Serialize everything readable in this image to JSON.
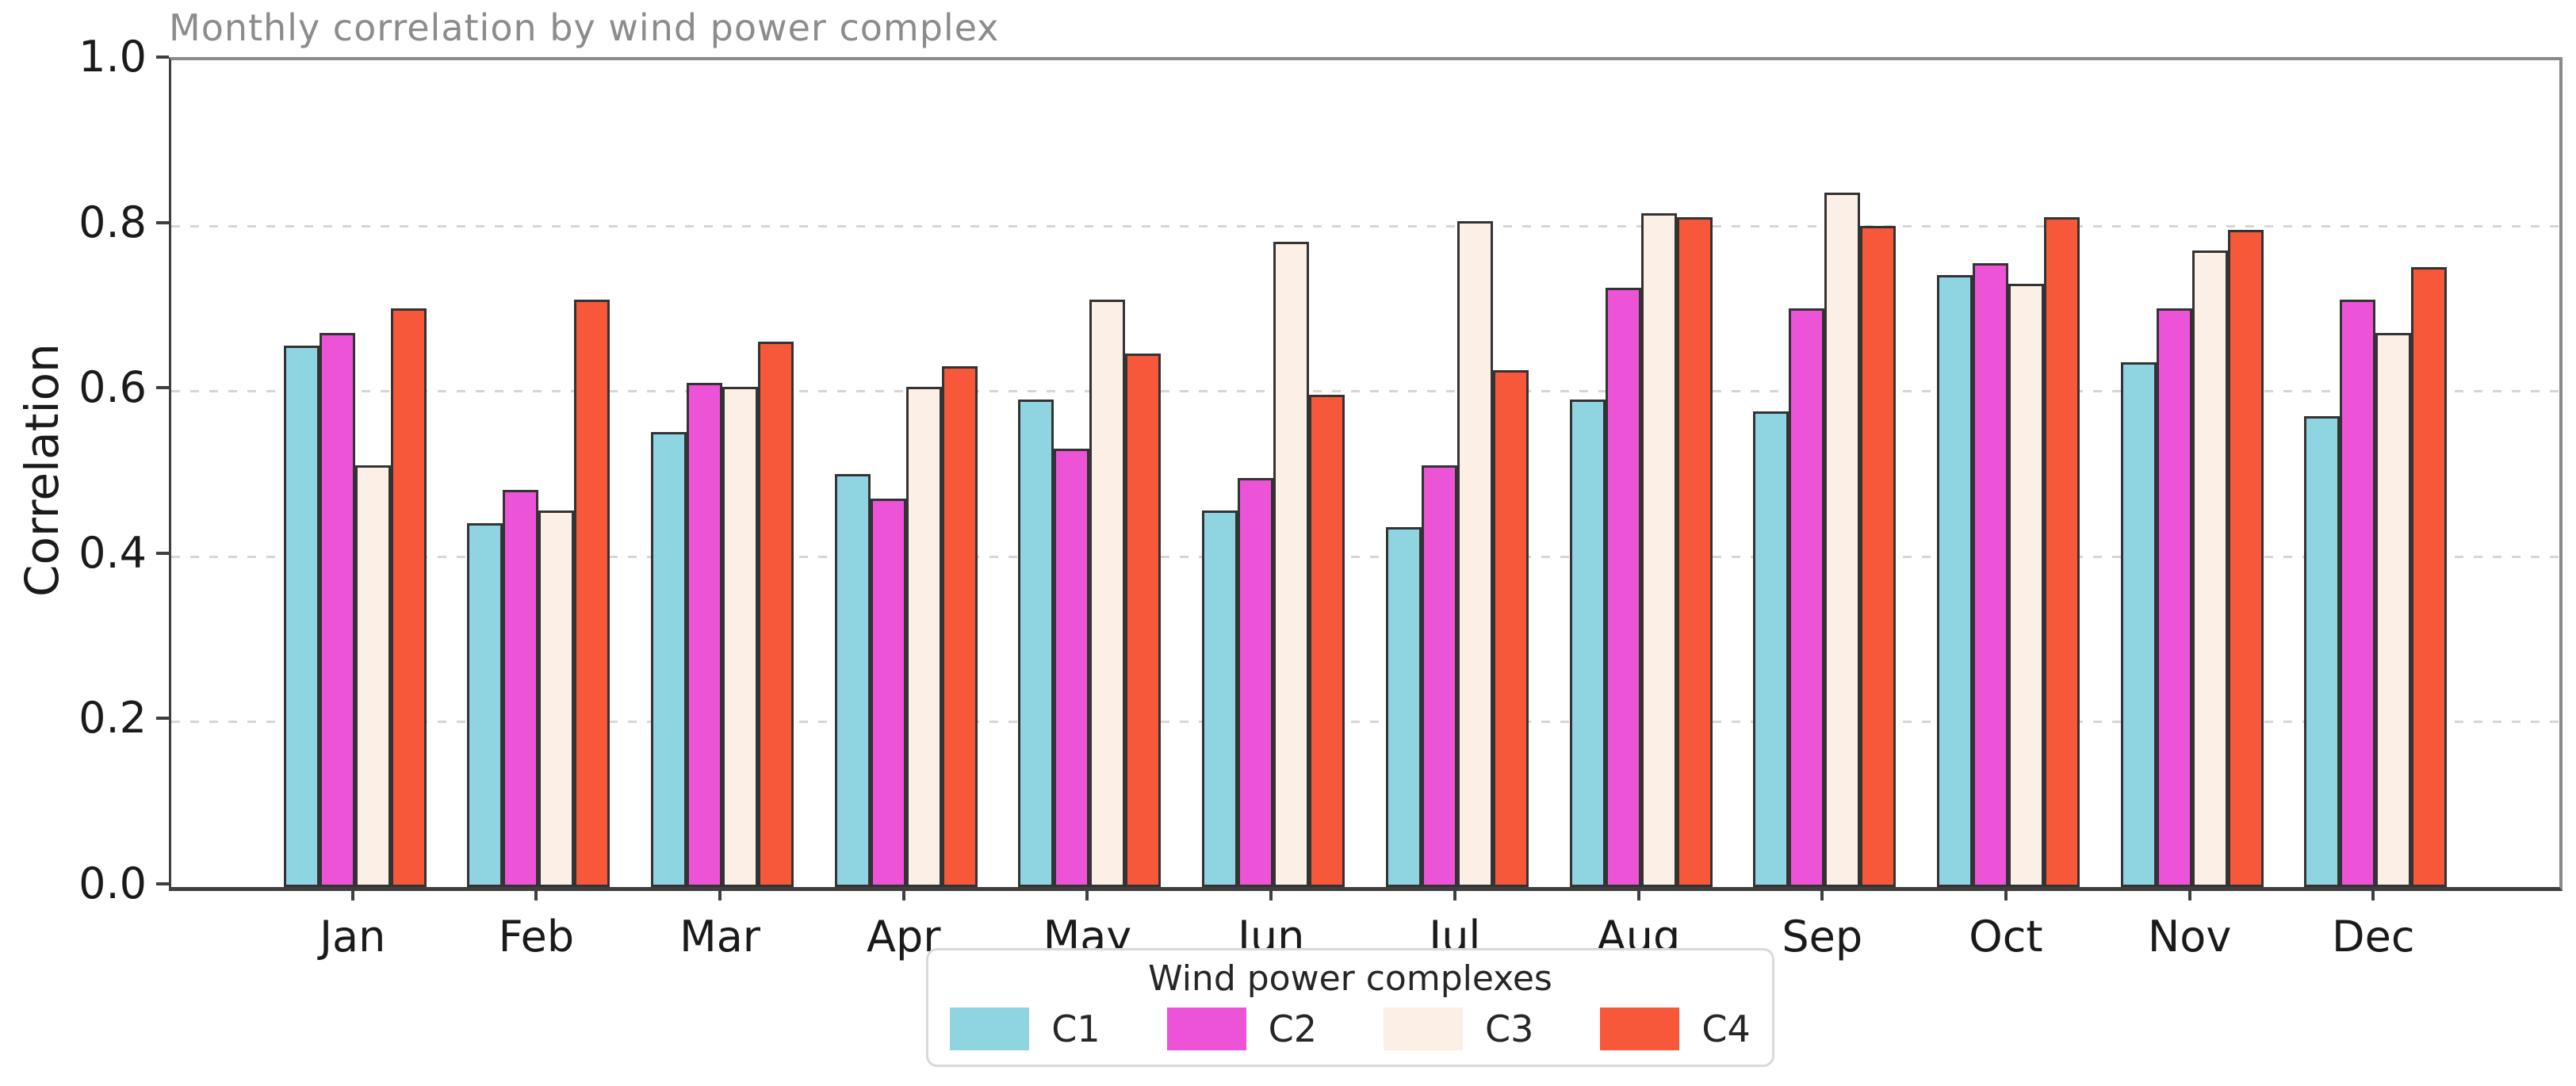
{
  "figure": {
    "title": "Monthly correlation by wind power complex",
    "ylabel": "Correlation"
  },
  "legend": {
    "title": "Wind power complexes",
    "entries": [
      {
        "label": "C1",
        "color": "#8FD5E1"
      },
      {
        "label": "C2",
        "color": "#EC53D7"
      },
      {
        "label": "C3",
        "color": "#FBEFE6"
      },
      {
        "label": "C4",
        "color": "#F7583A"
      }
    ]
  },
  "axes": {
    "yticks": [
      {
        "label": "0.0",
        "value": 0.0
      },
      {
        "label": "0.2",
        "value": 0.2
      },
      {
        "label": "0.4",
        "value": 0.4
      },
      {
        "label": "0.6",
        "value": 0.6
      },
      {
        "label": "0.8",
        "value": 0.8
      },
      {
        "label": "1.0",
        "value": 1.0
      }
    ],
    "gridline_values": [
      0.2,
      0.4,
      0.6,
      0.8
    ]
  },
  "chart_data": {
    "type": "bar",
    "title": "Monthly correlation by wind power complex",
    "xlabel": "",
    "ylabel": "Correlation",
    "ylim": [
      0.0,
      1.0
    ],
    "grid": "horizontal dashed gridlines at 0.2 intervals",
    "legend_position": "bottom center, below x axis",
    "bar_edge_color": "#333333",
    "categories": [
      "Jan",
      "Feb",
      "Mar",
      "Apr",
      "May",
      "Jun",
      "Jul",
      "Aug",
      "Sep",
      "Oct",
      "Nov",
      "Dec"
    ],
    "series": [
      {
        "name": "C1",
        "color": "#8FD5E1",
        "values": [
          0.655,
          0.44,
          0.55,
          0.5,
          0.59,
          0.455,
          0.435,
          0.59,
          0.575,
          0.74,
          0.635,
          0.57
        ]
      },
      {
        "name": "C2",
        "color": "#EC53D7",
        "values": [
          0.67,
          0.48,
          0.61,
          0.47,
          0.53,
          0.495,
          0.51,
          0.725,
          0.7,
          0.755,
          0.7,
          0.71
        ]
      },
      {
        "name": "C3",
        "color": "#FBEFE6",
        "values": [
          0.51,
          0.455,
          0.605,
          0.605,
          0.71,
          0.78,
          0.805,
          0.815,
          0.84,
          0.73,
          0.77,
          0.67
        ]
      },
      {
        "name": "C4",
        "color": "#F7583A",
        "values": [
          0.7,
          0.71,
          0.66,
          0.63,
          0.645,
          0.595,
          0.625,
          0.81,
          0.8,
          0.81,
          0.795,
          0.75
        ]
      }
    ]
  }
}
